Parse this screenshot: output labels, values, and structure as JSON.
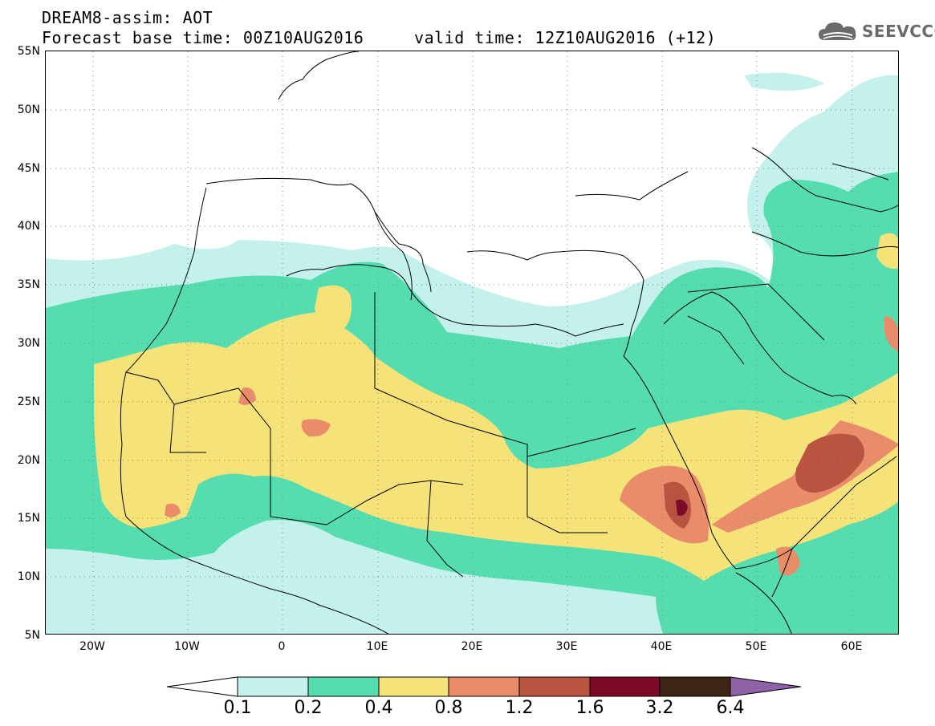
{
  "title": {
    "line1": "DREAM8-assim: AOT",
    "base_time_label": "Forecast base time: 00Z10AUG2016",
    "valid_time_label": "valid time: 12Z10AUG2016 (+12)"
  },
  "logo": {
    "text": "SEEVCCC",
    "icon": "cloud-icon"
  },
  "map": {
    "lat_labels": [
      "55N",
      "50N",
      "45N",
      "40N",
      "35N",
      "30N",
      "25N",
      "20N",
      "15N",
      "10N",
      "5N"
    ],
    "lon_labels": [
      "20W",
      "10W",
      "0",
      "10E",
      "20E",
      "30E",
      "40E",
      "50E",
      "60E"
    ],
    "lon_range": [
      -25,
      65
    ],
    "lat_range": [
      5,
      55
    ]
  },
  "colorbar": {
    "labels": [
      "0.1",
      "0.2",
      "0.4",
      "0.8",
      "1.2",
      "1.6",
      "3.2",
      "6.4"
    ],
    "colors": [
      "#ffffff",
      "#c4f1ec",
      "#55ddb0",
      "#f5e37a",
      "#e88c6a",
      "#b85440",
      "#7d0a28",
      "#3d2414",
      "#8f62a8"
    ]
  },
  "colors": {
    "level_01_02": "#c4f1ec",
    "level_02_04": "#55ddb0",
    "level_04_08": "#f5e37a",
    "level_08_12": "#e88c6a",
    "level_12_16": "#b85440",
    "level_16_32": "#7d0a28"
  }
}
